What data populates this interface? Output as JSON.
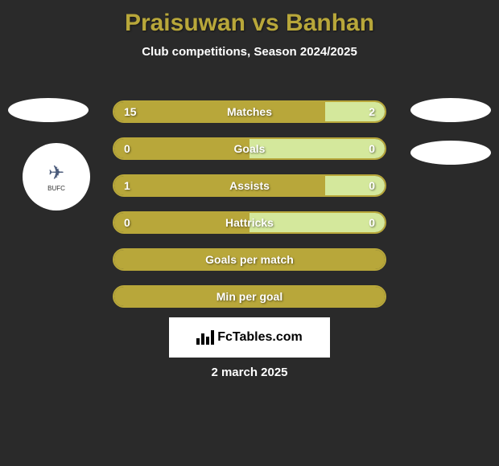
{
  "title": "Praisuwan vs Banhan",
  "subtitle": "Club competitions, Season 2024/2025",
  "date": "2 march 2025",
  "branding": "FcTables.com",
  "colors": {
    "background": "#2a2a2a",
    "accent": "#b8a73a",
    "bar_left": "#b8a73a",
    "bar_right": "#d4e89c",
    "text": "#ffffff"
  },
  "left_club": {
    "name": "Bangkok United",
    "abbrev": "BUFC"
  },
  "stats": [
    {
      "label": "Matches",
      "left_value": "15",
      "right_value": "2",
      "left_pct": 78,
      "right_pct": 22
    },
    {
      "label": "Goals",
      "left_value": "0",
      "right_value": "0",
      "left_pct": 50,
      "right_pct": 50
    },
    {
      "label": "Assists",
      "left_value": "1",
      "right_value": "0",
      "left_pct": 78,
      "right_pct": 22
    },
    {
      "label": "Hattricks",
      "left_value": "0",
      "right_value": "0",
      "left_pct": 50,
      "right_pct": 50
    },
    {
      "label": "Goals per match",
      "left_value": "",
      "right_value": "",
      "left_pct": 100,
      "right_pct": 0
    },
    {
      "label": "Min per goal",
      "left_value": "",
      "right_value": "",
      "left_pct": 100,
      "right_pct": 0
    }
  ]
}
